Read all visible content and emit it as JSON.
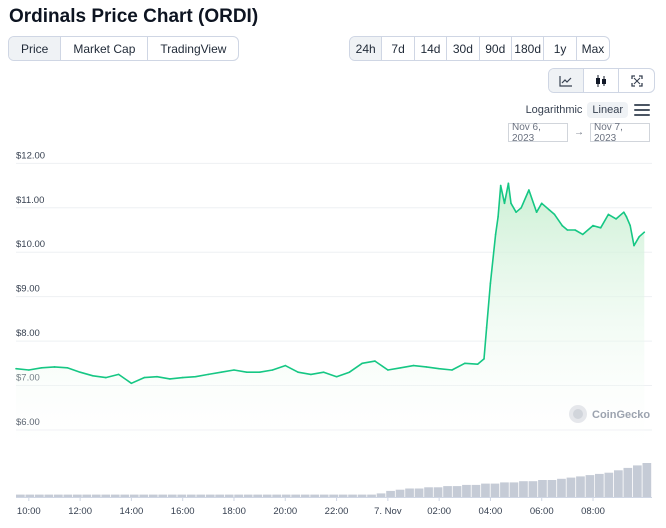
{
  "title": "Ordinals Price Chart (ORDI)",
  "view_tabs": [
    {
      "label": "Price",
      "active": true
    },
    {
      "label": "Market Cap",
      "active": false
    },
    {
      "label": "TradingView",
      "active": false
    }
  ],
  "range_tabs": [
    {
      "label": "24h",
      "active": true
    },
    {
      "label": "7d",
      "active": false
    },
    {
      "label": "14d",
      "active": false
    },
    {
      "label": "30d",
      "active": false
    },
    {
      "label": "90d",
      "active": false
    },
    {
      "label": "180d",
      "active": false
    },
    {
      "label": "1y",
      "active": false
    },
    {
      "label": "Max",
      "active": false
    }
  ],
  "chart_type_tabs": [
    {
      "icon": "line-chart-icon",
      "active": true
    },
    {
      "icon": "candlestick-icon",
      "active": false
    },
    {
      "icon": "fullscreen-icon",
      "active": false
    }
  ],
  "scale": {
    "logarithmic": "Logarithmic",
    "linear": "Linear",
    "active": "Linear"
  },
  "date_range": {
    "from": "Nov 6, 2023",
    "separator": "→",
    "to": "Nov 7, 2023"
  },
  "watermark": "CoinGecko",
  "colors": {
    "line": "#16c784",
    "area_top": "#c9efd2",
    "volume": "#c5cbd6"
  },
  "chart_data": {
    "type": "area",
    "y_tick_labels": [
      "$12.00",
      "$11.00",
      "$10.00",
      "$9.00",
      "$8.00",
      "$7.00",
      "$6.00"
    ],
    "y_ticks": [
      12,
      11,
      10,
      9,
      8,
      7,
      6
    ],
    "ylim": [
      5.55,
      12.3
    ],
    "x_tick_labels": [
      "10:00",
      "12:00",
      "14:00",
      "16:00",
      "18:00",
      "20:00",
      "22:00",
      "7. Nov",
      "02:00",
      "04:00",
      "06:00",
      "08:00"
    ],
    "x_ticks": [
      10,
      12,
      14,
      16,
      18,
      20,
      22,
      24,
      26,
      28,
      30,
      32
    ],
    "xlim": [
      9.5,
      34.3
    ],
    "grid": "horizontal",
    "x": [
      9.5,
      10,
      10.5,
      11,
      11.5,
      12,
      12.5,
      13,
      13.5,
      14,
      14.5,
      15,
      15.5,
      16,
      16.5,
      17,
      17.5,
      18,
      18.5,
      19,
      19.5,
      20,
      20.5,
      21,
      21.5,
      22,
      22.5,
      23,
      23.5,
      24,
      24.5,
      25,
      25.5,
      26,
      26.5,
      27,
      27.5,
      27.75,
      27.85,
      28,
      28.2,
      28.3,
      28.4,
      28.55,
      28.7,
      28.8,
      29,
      29.2,
      29.5,
      29.8,
      30,
      30.3,
      30.5,
      30.8,
      31,
      31.3,
      31.6,
      32,
      32.3,
      32.6,
      32.9,
      33.2,
      33.3,
      33.45,
      33.6,
      33.8,
      34
    ],
    "y": [
      7.38,
      7.35,
      7.4,
      7.42,
      7.4,
      7.3,
      7.22,
      7.18,
      7.25,
      7.05,
      7.18,
      7.2,
      7.15,
      7.18,
      7.2,
      7.25,
      7.3,
      7.35,
      7.3,
      7.3,
      7.35,
      7.45,
      7.3,
      7.25,
      7.3,
      7.2,
      7.3,
      7.5,
      7.55,
      7.35,
      7.4,
      7.45,
      7.42,
      7.38,
      7.35,
      7.5,
      7.48,
      7.6,
      8.3,
      9.3,
      10.4,
      10.8,
      11.5,
      11.1,
      11.55,
      11.1,
      10.9,
      11.0,
      11.4,
      10.9,
      11.1,
      10.95,
      10.85,
      10.6,
      10.5,
      10.5,
      10.4,
      10.6,
      10.55,
      10.85,
      10.75,
      10.9,
      10.8,
      10.6,
      10.15,
      10.35,
      10.45
    ],
    "volume": [
      2,
      2,
      2,
      2,
      2,
      2,
      2,
      2,
      2,
      2,
      2,
      2,
      2,
      2,
      2,
      2,
      2,
      2,
      2,
      2,
      2,
      2,
      2,
      2,
      2,
      2,
      2,
      2,
      2,
      2,
      2,
      2,
      2,
      2,
      2,
      2,
      2,
      2,
      3,
      5,
      6,
      7,
      7,
      8,
      8,
      9,
      9,
      10,
      10,
      11,
      11,
      12,
      12,
      13,
      13,
      14,
      14,
      15,
      16,
      17,
      18,
      19,
      20,
      22,
      24,
      26,
      28
    ]
  }
}
